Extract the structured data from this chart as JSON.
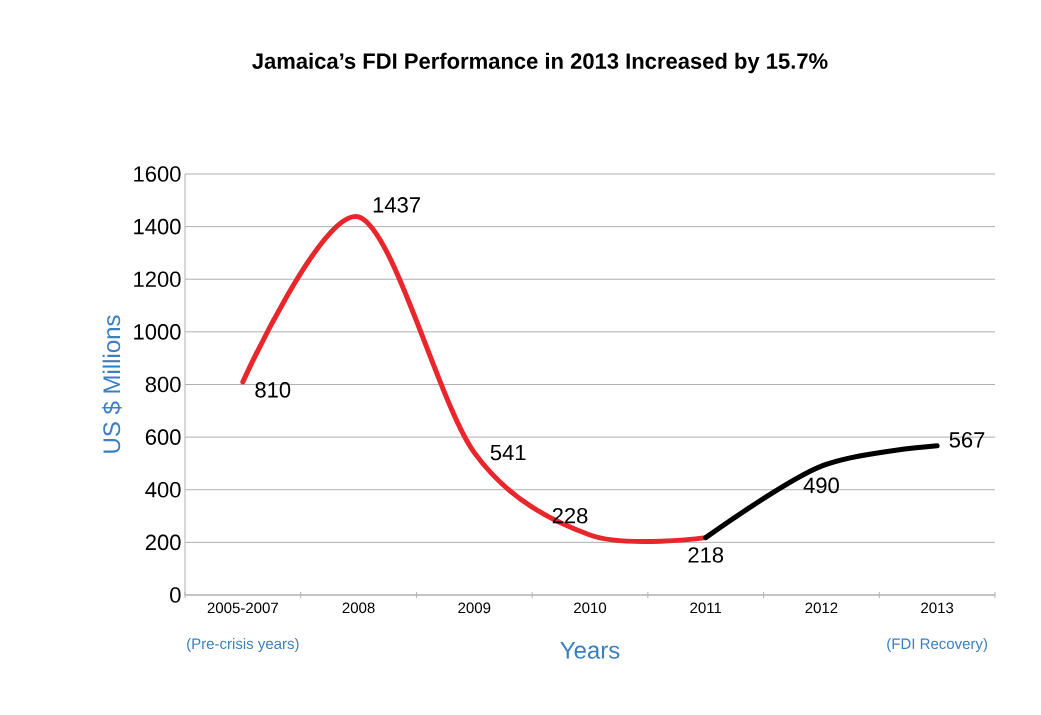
{
  "chart_data": {
    "type": "line",
    "title": "Jamaica’s FDI Performance in 2013 Increased by 15.7%",
    "xlabel": "Years",
    "ylabel": "US $ Millions",
    "categories": [
      "2005-2007",
      "2008",
      "2009",
      "2010",
      "2011",
      "2012",
      "2013"
    ],
    "series": [
      {
        "color": "#e8262b",
        "values": [
          810,
          1437,
          541,
          228,
          218,
          null,
          null
        ],
        "value_labels": [
          "810",
          "1437",
          "541",
          "228",
          null,
          null,
          null
        ]
      },
      {
        "color": "#000000",
        "values": [
          null,
          null,
          null,
          null,
          218,
          490,
          567
        ],
        "value_labels": [
          null,
          null,
          null,
          null,
          "218",
          "490",
          "567"
        ]
      }
    ],
    "ylim": [
      0,
      1600
    ],
    "yticks": [
      0,
      200,
      400,
      600,
      800,
      1000,
      1200,
      1400,
      1600
    ],
    "grid": "y",
    "marker": "none",
    "line_style": "solid",
    "annotations": [
      "(Pre-crisis years)",
      "(FDI Recovery)"
    ]
  }
}
